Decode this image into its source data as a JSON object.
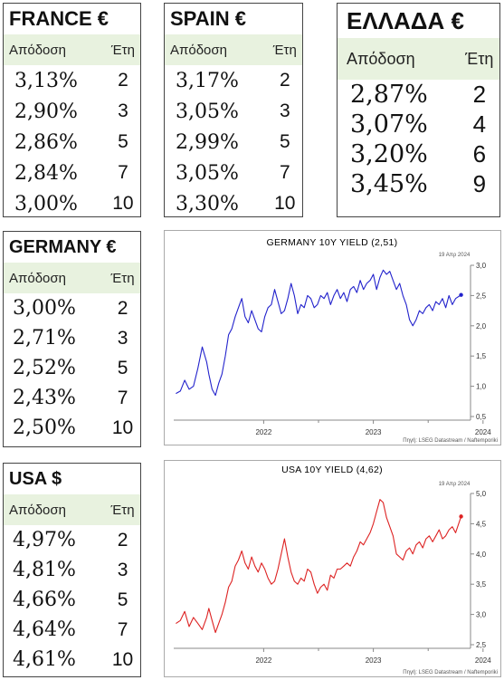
{
  "headers": {
    "yield": "Απόδοση",
    "years": "Έτη"
  },
  "tables": {
    "france": {
      "title": "FRANCE €",
      "rows": [
        [
          "3,13%",
          "2"
        ],
        [
          "2,90%",
          "3"
        ],
        [
          "2,86%",
          "5"
        ],
        [
          "2,84%",
          "7"
        ],
        [
          "3,00%",
          "10"
        ]
      ]
    },
    "spain": {
      "title": "SPAIN €",
      "rows": [
        [
          "3,17%",
          "2"
        ],
        [
          "3,05%",
          "3"
        ],
        [
          "2,99%",
          "5"
        ],
        [
          "3,05%",
          "7"
        ],
        [
          "3,30%",
          "10"
        ]
      ]
    },
    "greece": {
      "title": "ΕΛΛΑΔΑ €",
      "rows": [
        [
          "2,87%",
          "2"
        ],
        [
          "3,07%",
          "4"
        ],
        [
          "3,20%",
          "6"
        ],
        [
          "3,45%",
          "9"
        ]
      ]
    },
    "germany": {
      "title": "GERMANY €",
      "rows": [
        [
          "3,00%",
          "2"
        ],
        [
          "2,71%",
          "3"
        ],
        [
          "2,52%",
          "5"
        ],
        [
          "2,43%",
          "7"
        ],
        [
          "2,50%",
          "10"
        ]
      ]
    },
    "usa": {
      "title": "USA $",
      "rows": [
        [
          "4,97%",
          "2"
        ],
        [
          "4,81%",
          "3"
        ],
        [
          "4,66%",
          "5"
        ],
        [
          "4,64%",
          "7"
        ],
        [
          "4,61%",
          "10"
        ]
      ]
    }
  },
  "chart_data": [
    {
      "type": "line",
      "title": "GERMANY 10Y YIELD (2,51)",
      "date_label": "19 Απρ 2024",
      "source": "Πηγή: LSEG Datastream / Naftemporiki",
      "color": "#2222cc",
      "x_ticks": [
        "2022",
        "2023",
        "2024"
      ],
      "y_ticks": [
        "3,0",
        "2,5",
        "2,0",
        "1,5",
        "1,0",
        "0,5"
      ],
      "ylim": [
        0.5,
        3.0
      ],
      "x": [
        2021.7,
        2021.74,
        2021.78,
        2021.82,
        2021.86,
        2021.9,
        2021.94,
        2021.98,
        2022.0,
        2022.03,
        2022.06,
        2022.09,
        2022.12,
        2022.15,
        2022.18,
        2022.21,
        2022.24,
        2022.27,
        2022.3,
        2022.33,
        2022.36,
        2022.39,
        2022.42,
        2022.45,
        2022.48,
        2022.51,
        2022.54,
        2022.57,
        2022.6,
        2022.63,
        2022.66,
        2022.69,
        2022.72,
        2022.75,
        2022.78,
        2022.81,
        2022.84,
        2022.87,
        2022.9,
        2022.93,
        2022.96,
        2022.99,
        2023.02,
        2023.05,
        2023.08,
        2023.11,
        2023.14,
        2023.17,
        2023.2,
        2023.23,
        2023.26,
        2023.29,
        2023.32,
        2023.35,
        2023.38,
        2023.41,
        2023.44,
        2023.47,
        2023.5,
        2023.53,
        2023.56,
        2023.59,
        2023.62,
        2023.65,
        2023.68,
        2023.71,
        2023.74,
        2023.77,
        2023.8,
        2023.83,
        2023.86,
        2023.89,
        2023.92,
        2023.95,
        2023.98,
        2024.01,
        2024.04,
        2024.07,
        2024.1,
        2024.13,
        2024.16,
        2024.19,
        2024.22,
        2024.25,
        2024.3
      ],
      "y": [
        0.88,
        0.92,
        1.1,
        0.95,
        1.0,
        1.3,
        1.65,
        1.4,
        1.2,
        0.95,
        0.85,
        1.05,
        1.2,
        1.5,
        1.85,
        1.95,
        2.15,
        2.3,
        2.45,
        2.15,
        2.05,
        2.25,
        2.1,
        1.95,
        1.9,
        2.15,
        2.3,
        2.35,
        2.6,
        2.4,
        2.2,
        2.25,
        2.45,
        2.7,
        2.5,
        2.2,
        2.35,
        2.3,
        2.5,
        2.45,
        2.3,
        2.35,
        2.5,
        2.45,
        2.55,
        2.35,
        2.5,
        2.6,
        2.45,
        2.55,
        2.4,
        2.6,
        2.65,
        2.55,
        2.75,
        2.6,
        2.7,
        2.75,
        2.85,
        2.6,
        2.8,
        2.92,
        2.85,
        2.9,
        2.75,
        2.6,
        2.7,
        2.5,
        2.35,
        2.1,
        2.0,
        2.1,
        2.25,
        2.2,
        2.3,
        2.35,
        2.25,
        2.4,
        2.35,
        2.45,
        2.3,
        2.5,
        2.35,
        2.45,
        2.51
      ]
    },
    {
      "type": "line",
      "title": "USA 10Y YIELD (4,62)",
      "date_label": "19 Απρ 2024",
      "source": "Πηγή: LSEG Datastream / Naftemporiki",
      "color": "#dd2222",
      "x_ticks": [
        "2022",
        "2023",
        "2024"
      ],
      "y_ticks": [
        "5,0",
        "4,5",
        "4,0",
        "3,5",
        "3,0",
        "2,5"
      ],
      "ylim": [
        2.5,
        5.0
      ],
      "x": [
        2021.7,
        2021.74,
        2021.78,
        2021.82,
        2021.86,
        2021.9,
        2021.94,
        2021.98,
        2022.0,
        2022.03,
        2022.06,
        2022.09,
        2022.12,
        2022.15,
        2022.18,
        2022.21,
        2022.24,
        2022.27,
        2022.3,
        2022.33,
        2022.36,
        2022.39,
        2022.42,
        2022.45,
        2022.48,
        2022.51,
        2022.54,
        2022.57,
        2022.6,
        2022.63,
        2022.66,
        2022.69,
        2022.72,
        2022.75,
        2022.78,
        2022.81,
        2022.84,
        2022.87,
        2022.9,
        2022.93,
        2022.96,
        2022.99,
        2023.02,
        2023.05,
        2023.08,
        2023.11,
        2023.14,
        2023.17,
        2023.2,
        2023.23,
        2023.26,
        2023.29,
        2023.32,
        2023.35,
        2023.38,
        2023.41,
        2023.44,
        2023.47,
        2023.5,
        2023.53,
        2023.56,
        2023.59,
        2023.62,
        2023.65,
        2023.68,
        2023.71,
        2023.74,
        2023.77,
        2023.8,
        2023.83,
        2023.86,
        2023.89,
        2023.92,
        2023.95,
        2023.98,
        2024.01,
        2024.04,
        2024.07,
        2024.1,
        2024.13,
        2024.16,
        2024.19,
        2024.22,
        2024.25,
        2024.3
      ],
      "y": [
        2.85,
        2.9,
        3.05,
        2.8,
        2.95,
        2.85,
        2.75,
        2.95,
        3.1,
        2.9,
        2.7,
        2.85,
        3.0,
        3.2,
        3.45,
        3.55,
        3.8,
        3.9,
        4.05,
        3.85,
        3.75,
        3.95,
        3.8,
        3.7,
        3.85,
        3.75,
        3.6,
        3.5,
        3.55,
        3.75,
        4.0,
        4.25,
        3.95,
        3.7,
        3.55,
        3.5,
        3.6,
        3.55,
        3.75,
        3.7,
        3.5,
        3.35,
        3.45,
        3.5,
        3.4,
        3.65,
        3.6,
        3.75,
        3.75,
        3.8,
        3.85,
        3.8,
        3.95,
        4.05,
        4.2,
        4.15,
        4.25,
        4.35,
        4.5,
        4.7,
        4.9,
        4.85,
        4.6,
        4.45,
        4.3,
        4.0,
        3.95,
        3.9,
        4.05,
        4.1,
        4.0,
        4.15,
        4.2,
        4.1,
        4.25,
        4.3,
        4.2,
        4.3,
        4.4,
        4.25,
        4.3,
        4.4,
        4.45,
        4.35,
        4.62
      ]
    }
  ]
}
